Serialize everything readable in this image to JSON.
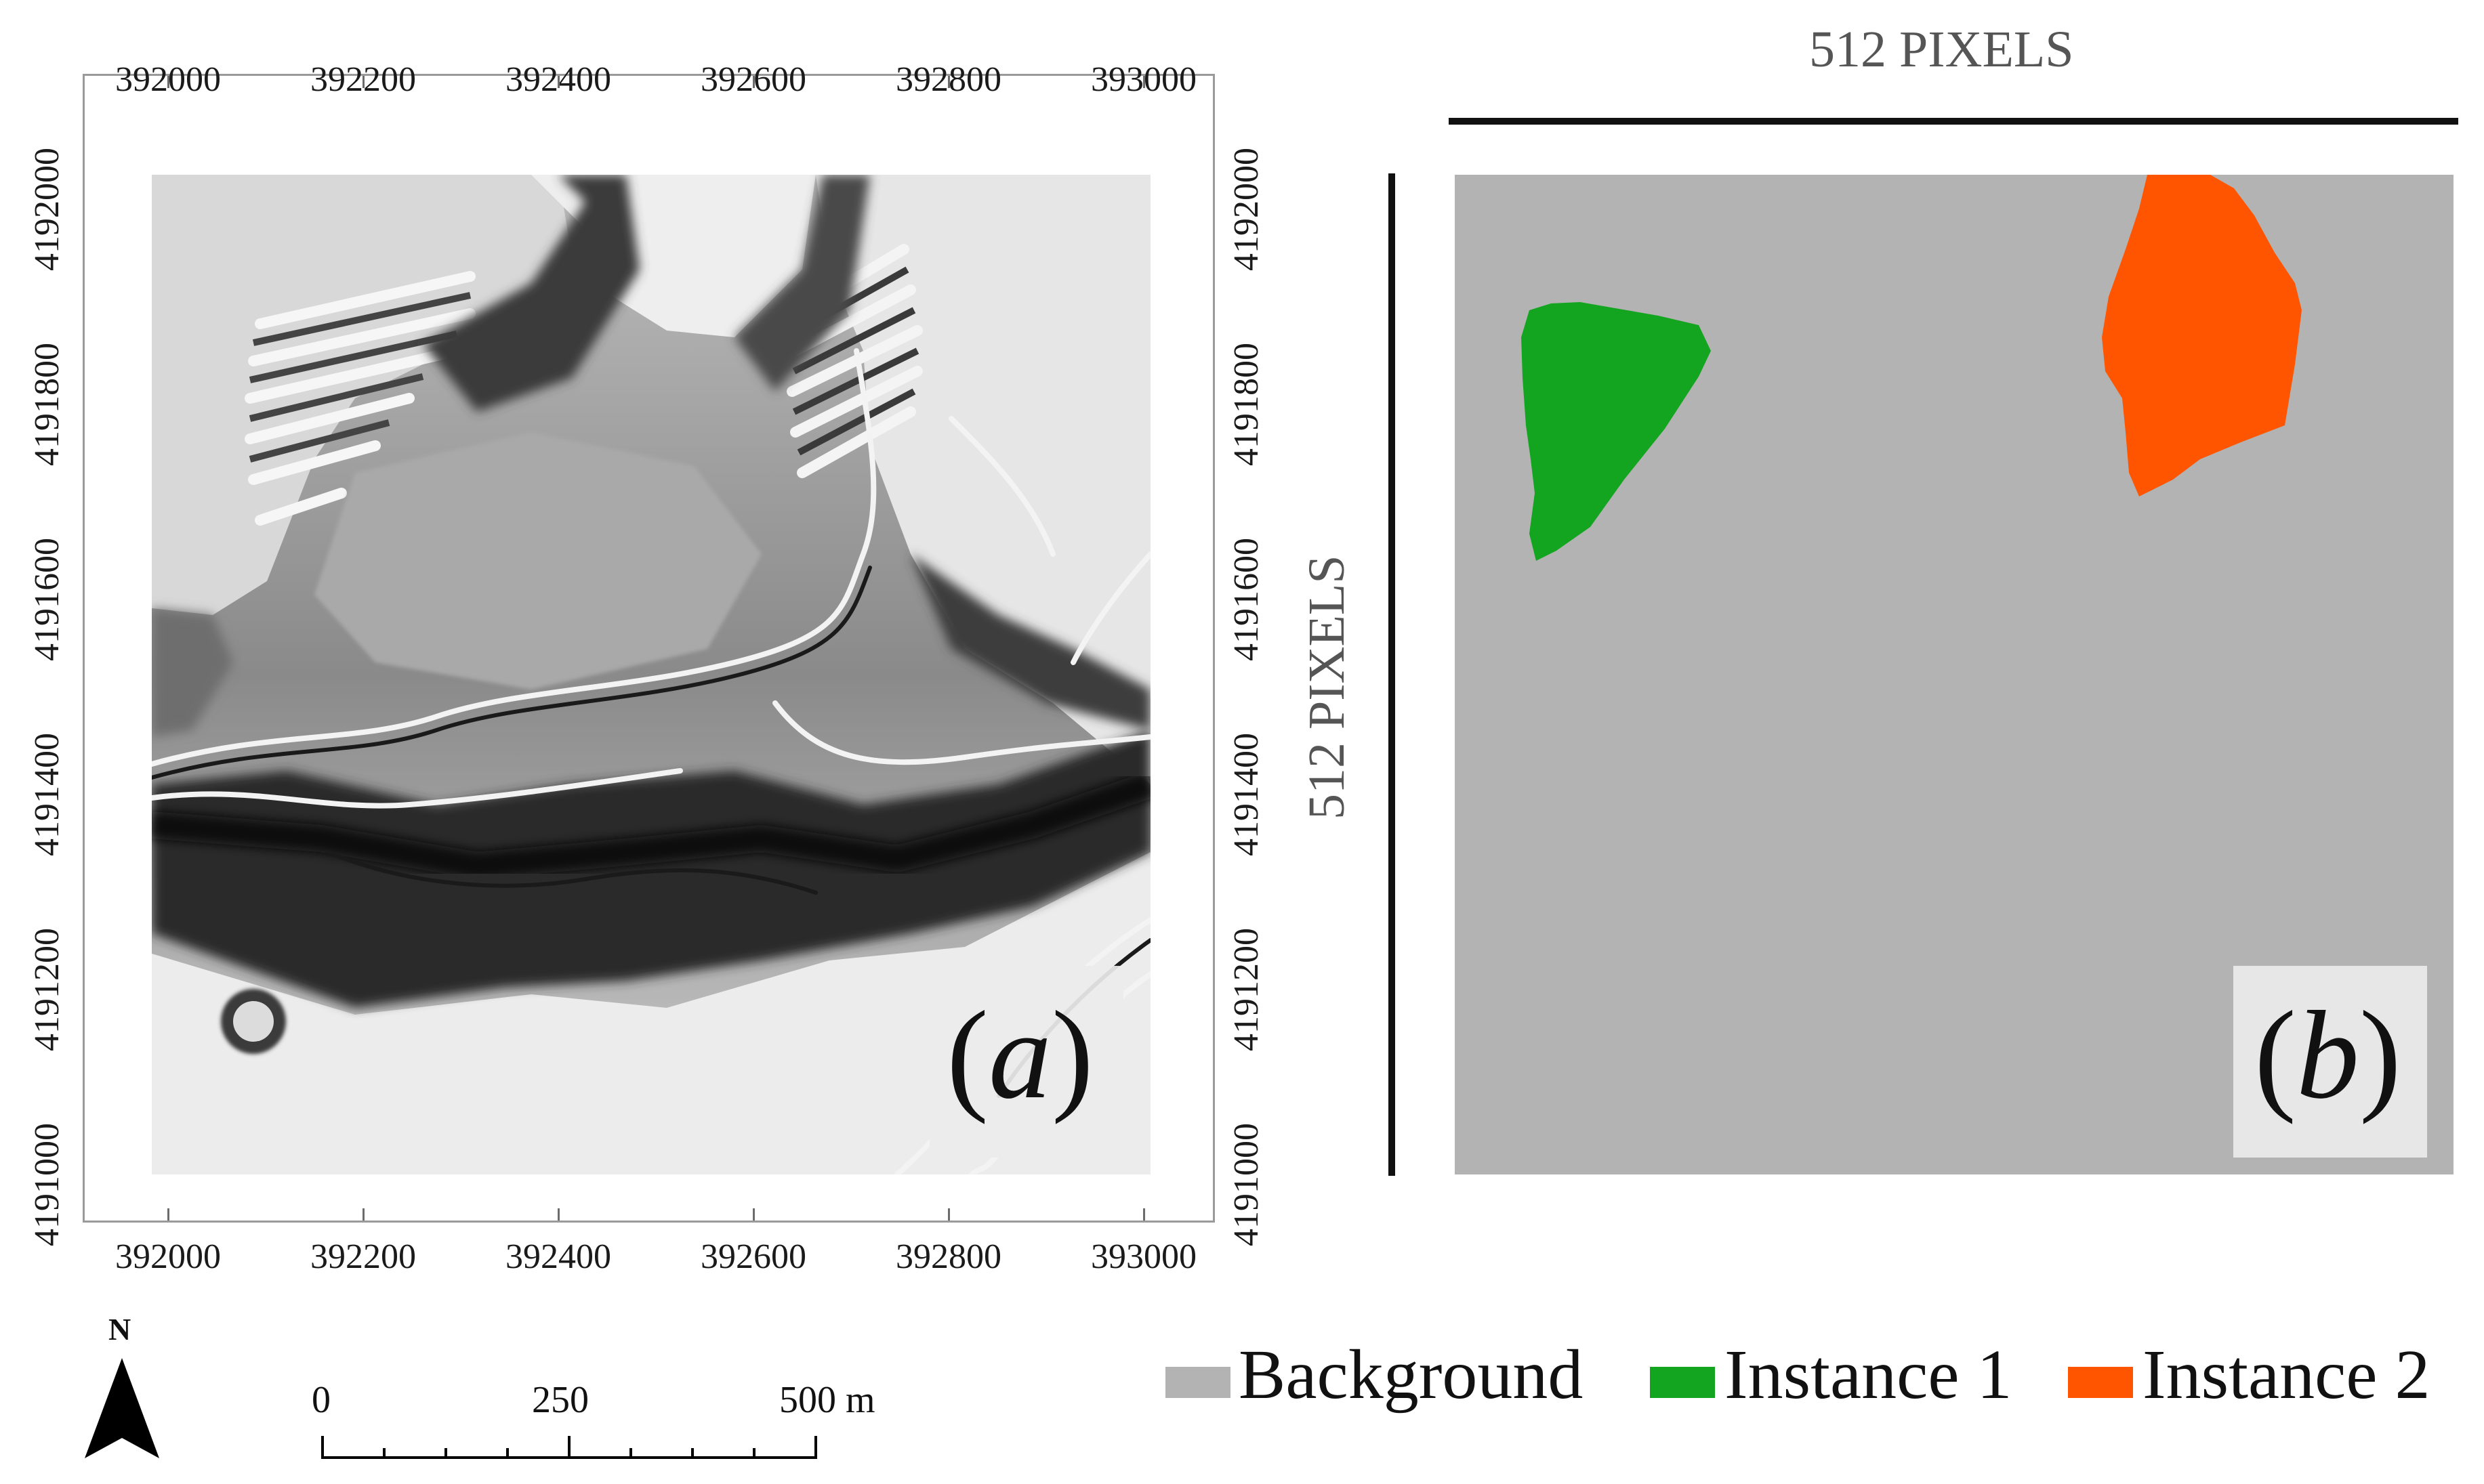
{
  "map_a": {
    "x_ticks": [
      "392000",
      "392200",
      "392400",
      "392600",
      "392800",
      "393000"
    ],
    "y_ticks": [
      "4192000",
      "4191800",
      "4191600",
      "4191400",
      "4191200",
      "4191000"
    ],
    "panel_label": "a",
    "scale_bar": {
      "labels": [
        "0",
        "250",
        "500 m"
      ]
    },
    "north_arrow": {
      "label": "N",
      "icon": "north-arrow-icon"
    }
  },
  "map_b": {
    "width_label": "512 PIXELS",
    "height_label": "512 PIXELS",
    "panel_label": "b"
  },
  "legend": {
    "items": [
      {
        "label": "Background",
        "color": "#b3b3b3"
      },
      {
        "label": "Instance 1",
        "color": "#13a520"
      },
      {
        "label": "Instance 2",
        "color": "#ff5500"
      }
    ]
  },
  "colors": {
    "hillshade_dark": "#1c1c1c",
    "hillshade_light": "#f4f4f4",
    "frame": "#9a9a9a"
  }
}
